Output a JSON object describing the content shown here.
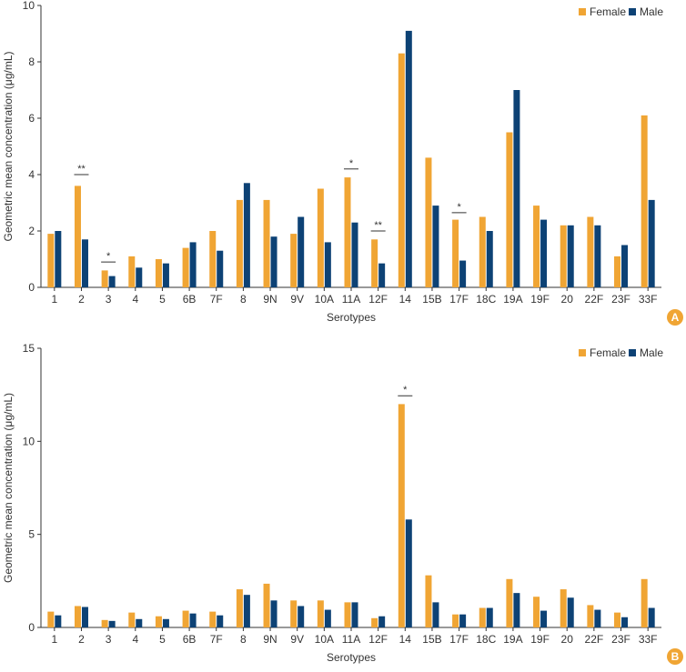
{
  "colors": {
    "female": "#F0A534",
    "male": "#0D4275",
    "axis": "#333333",
    "badge": "#F0A534"
  },
  "chart_data": [
    {
      "type": "bar",
      "panel_label": "A",
      "title": "",
      "xlabel": "Serotypes",
      "ylabel": "Geometric mean concentration (μg/mL)",
      "ylim": [
        0,
        10
      ],
      "yticks": [
        0,
        2,
        4,
        6,
        8,
        10
      ],
      "grid": false,
      "legend_position": "top-right",
      "categories": [
        "1",
        "2",
        "3",
        "4",
        "5",
        "6B",
        "7F",
        "8",
        "9N",
        "9V",
        "10A",
        "11A",
        "12F",
        "14",
        "15B",
        "17F",
        "18C",
        "19A",
        "19F",
        "20",
        "22F",
        "23F",
        "33F"
      ],
      "series": [
        {
          "name": "Female",
          "values": [
            1.9,
            3.6,
            0.6,
            1.1,
            1.0,
            1.4,
            2.0,
            3.1,
            3.1,
            1.9,
            3.5,
            3.9,
            1.7,
            8.3,
            4.6,
            2.4,
            2.5,
            5.5,
            2.9,
            2.2,
            2.5,
            1.1,
            6.1
          ]
        },
        {
          "name": "Male",
          "values": [
            2.0,
            1.7,
            0.4,
            0.7,
            0.85,
            1.6,
            1.3,
            3.7,
            1.8,
            2.5,
            1.6,
            2.3,
            0.85,
            9.1,
            2.9,
            0.95,
            2.0,
            7.0,
            2.4,
            2.2,
            2.2,
            1.5,
            3.1
          ]
        }
      ],
      "annotations": [
        {
          "category": "2",
          "text": "**",
          "at_value": 4.0
        },
        {
          "category": "3",
          "text": "*",
          "at_value": 0.9
        },
        {
          "category": "11A",
          "text": "*",
          "at_value": 4.2
        },
        {
          "category": "12F",
          "text": "**",
          "at_value": 2.0
        },
        {
          "category": "17F",
          "text": "*",
          "at_value": 2.65
        }
      ]
    },
    {
      "type": "bar",
      "panel_label": "B",
      "title": "",
      "xlabel": "Serotypes",
      "ylabel": "Geometric mean concentration (μg/mL)",
      "ylim": [
        0,
        15
      ],
      "yticks": [
        0,
        5,
        10,
        15
      ],
      "grid": false,
      "legend_position": "top-right",
      "categories": [
        "1",
        "2",
        "3",
        "4",
        "5",
        "6B",
        "7F",
        "8",
        "9N",
        "9V",
        "10A",
        "11A",
        "12F",
        "14",
        "15B",
        "17F",
        "18C",
        "19A",
        "19F",
        "20",
        "22F",
        "23F",
        "33F"
      ],
      "series": [
        {
          "name": "Female",
          "values": [
            0.85,
            1.15,
            0.4,
            0.8,
            0.6,
            0.9,
            0.85,
            2.05,
            2.35,
            1.45,
            1.45,
            1.35,
            0.5,
            12.0,
            2.8,
            0.7,
            1.05,
            2.6,
            1.65,
            2.05,
            1.2,
            0.8,
            2.6
          ]
        },
        {
          "name": "Male",
          "values": [
            0.65,
            1.1,
            0.35,
            0.45,
            0.45,
            0.75,
            0.65,
            1.75,
            1.45,
            1.15,
            0.95,
            1.35,
            0.6,
            5.8,
            1.35,
            0.7,
            1.05,
            1.85,
            0.9,
            1.6,
            0.95,
            0.55,
            1.05
          ]
        }
      ],
      "annotations": [
        {
          "category": "14",
          "text": "*",
          "at_value": 12.45
        }
      ]
    }
  ]
}
